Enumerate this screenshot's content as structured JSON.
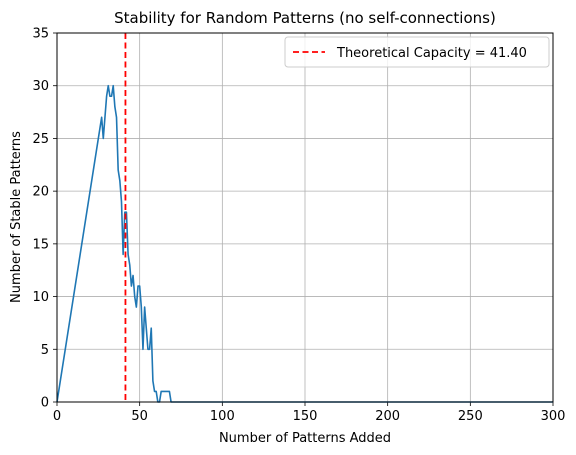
{
  "chart_data": {
    "type": "line",
    "title": "Stability for Random Patterns (no self-connections)",
    "xlabel": "Number of Patterns Added",
    "ylabel": "Number of Stable Patterns",
    "xlim": [
      0,
      300
    ],
    "ylim": [
      0,
      35
    ],
    "x_ticks": [
      0,
      50,
      100,
      150,
      200,
      250,
      300
    ],
    "y_ticks": [
      0,
      5,
      10,
      15,
      20,
      25,
      30,
      35
    ],
    "grid": true,
    "legend_position": "top-right",
    "series": [
      {
        "color": "#1f77b4",
        "points": [
          [
            0,
            0
          ],
          [
            27,
            27
          ],
          [
            28,
            25
          ],
          [
            30,
            29
          ],
          [
            31,
            30
          ],
          [
            32,
            29
          ],
          [
            33,
            29
          ],
          [
            34,
            30
          ],
          [
            35,
            28
          ],
          [
            36,
            27
          ],
          [
            37,
            22
          ],
          [
            38,
            21
          ],
          [
            39,
            19
          ],
          [
            40,
            14
          ],
          [
            41,
            18
          ],
          [
            42,
            18
          ],
          [
            43,
            14
          ],
          [
            44,
            13
          ],
          [
            45,
            11
          ],
          [
            46,
            12
          ],
          [
            47,
            10
          ],
          [
            48,
            9
          ],
          [
            49,
            11
          ],
          [
            50,
            11
          ],
          [
            51,
            9
          ],
          [
            52,
            5
          ],
          [
            53,
            9
          ],
          [
            54,
            7
          ],
          [
            55,
            5
          ],
          [
            56,
            5
          ],
          [
            57,
            7
          ],
          [
            58,
            2
          ],
          [
            59,
            1
          ],
          [
            60,
            1
          ],
          [
            61,
            0
          ],
          [
            62,
            0
          ],
          [
            63,
            1
          ],
          [
            64,
            1
          ],
          [
            65,
            1
          ],
          [
            66,
            1
          ],
          [
            67,
            1
          ],
          [
            68,
            1
          ],
          [
            69,
            0
          ],
          [
            70,
            0
          ],
          [
            300,
            0
          ]
        ]
      }
    ],
    "reference_line": {
      "x": 41.4,
      "color": "#ff0000",
      "style": "dashed",
      "legend_label": "Theoretical Capacity = 41.40"
    }
  }
}
